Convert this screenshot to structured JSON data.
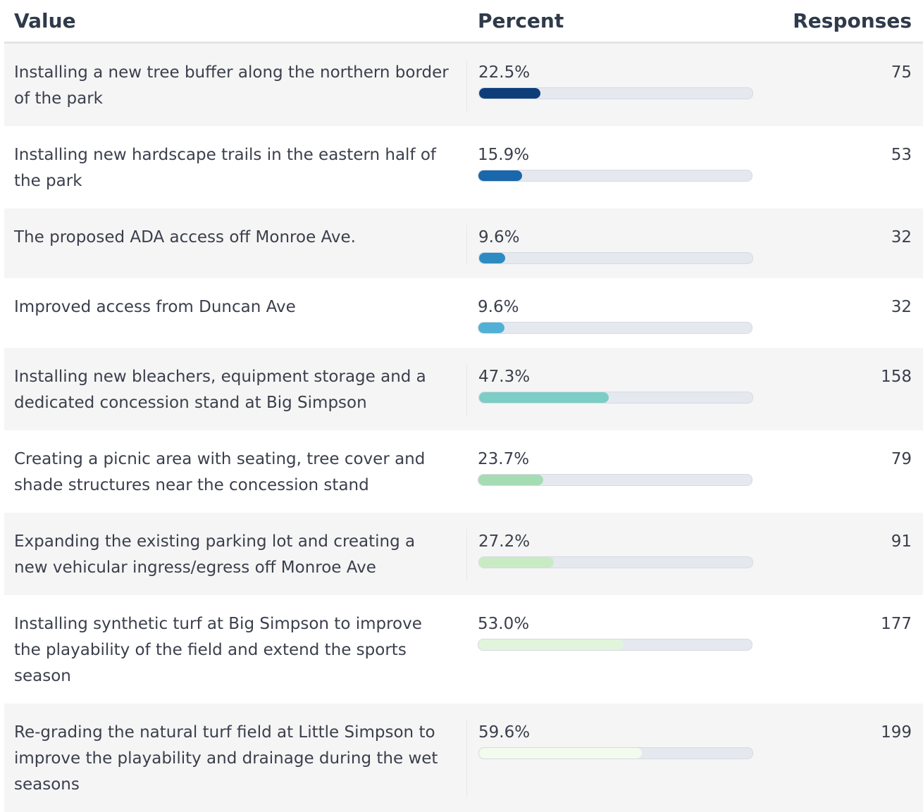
{
  "table": {
    "header": [
      "Value",
      "Percent",
      "Responses"
    ],
    "bar_scale": [
      0,
      100
    ],
    "rows": [
      {
        "value": "Installing a new tree buffer along the northern border of the park",
        "percent": 22.5,
        "percent_label": "22.5%",
        "responses": 75,
        "color": "#0d3e7a"
      },
      {
        "value": "Installing new hardscape trails in the eastern half of the park",
        "percent": 15.9,
        "percent_label": "15.9%",
        "responses": 53,
        "color": "#1a67ab"
      },
      {
        "value": "The proposed ADA access off Monroe Ave.",
        "percent": 9.6,
        "percent_label": "9.6%",
        "responses": 32,
        "color": "#2d8bc2"
      },
      {
        "value": "Improved access from Duncan Ave",
        "percent": 9.6,
        "percent_label": "9.6%",
        "responses": 32,
        "color": "#50b0d6"
      },
      {
        "value": "Installing new bleachers, equipment storage and a dedicated concession stand at Big Simpson",
        "percent": 47.3,
        "percent_label": "47.3%",
        "responses": 158,
        "color": "#7ccdc6"
      },
      {
        "value": "Creating a picnic area with seating, tree cover and shade structures near the concession stand",
        "percent": 23.7,
        "percent_label": "23.7%",
        "responses": 79,
        "color": "#a6dcb4"
      },
      {
        "value": "Expanding the existing parking lot and creating a new vehicular ingress/egress off Monroe Ave",
        "percent": 27.2,
        "percent_label": "27.2%",
        "responses": 91,
        "color": "#c9ebc4"
      },
      {
        "value": "Installing synthetic turf at Big Simpson to improve the playability of the field and extend the sports season",
        "percent": 53.0,
        "percent_label": "53.0%",
        "responses": 177,
        "color": "#e1f5dc"
      },
      {
        "value": "Re-grading the natural turf field at Little Simpson to improve the playability and drainage during the wet seasons",
        "percent": 59.6,
        "percent_label": "59.6%",
        "responses": 199,
        "color": "#f3fbef"
      }
    ]
  }
}
